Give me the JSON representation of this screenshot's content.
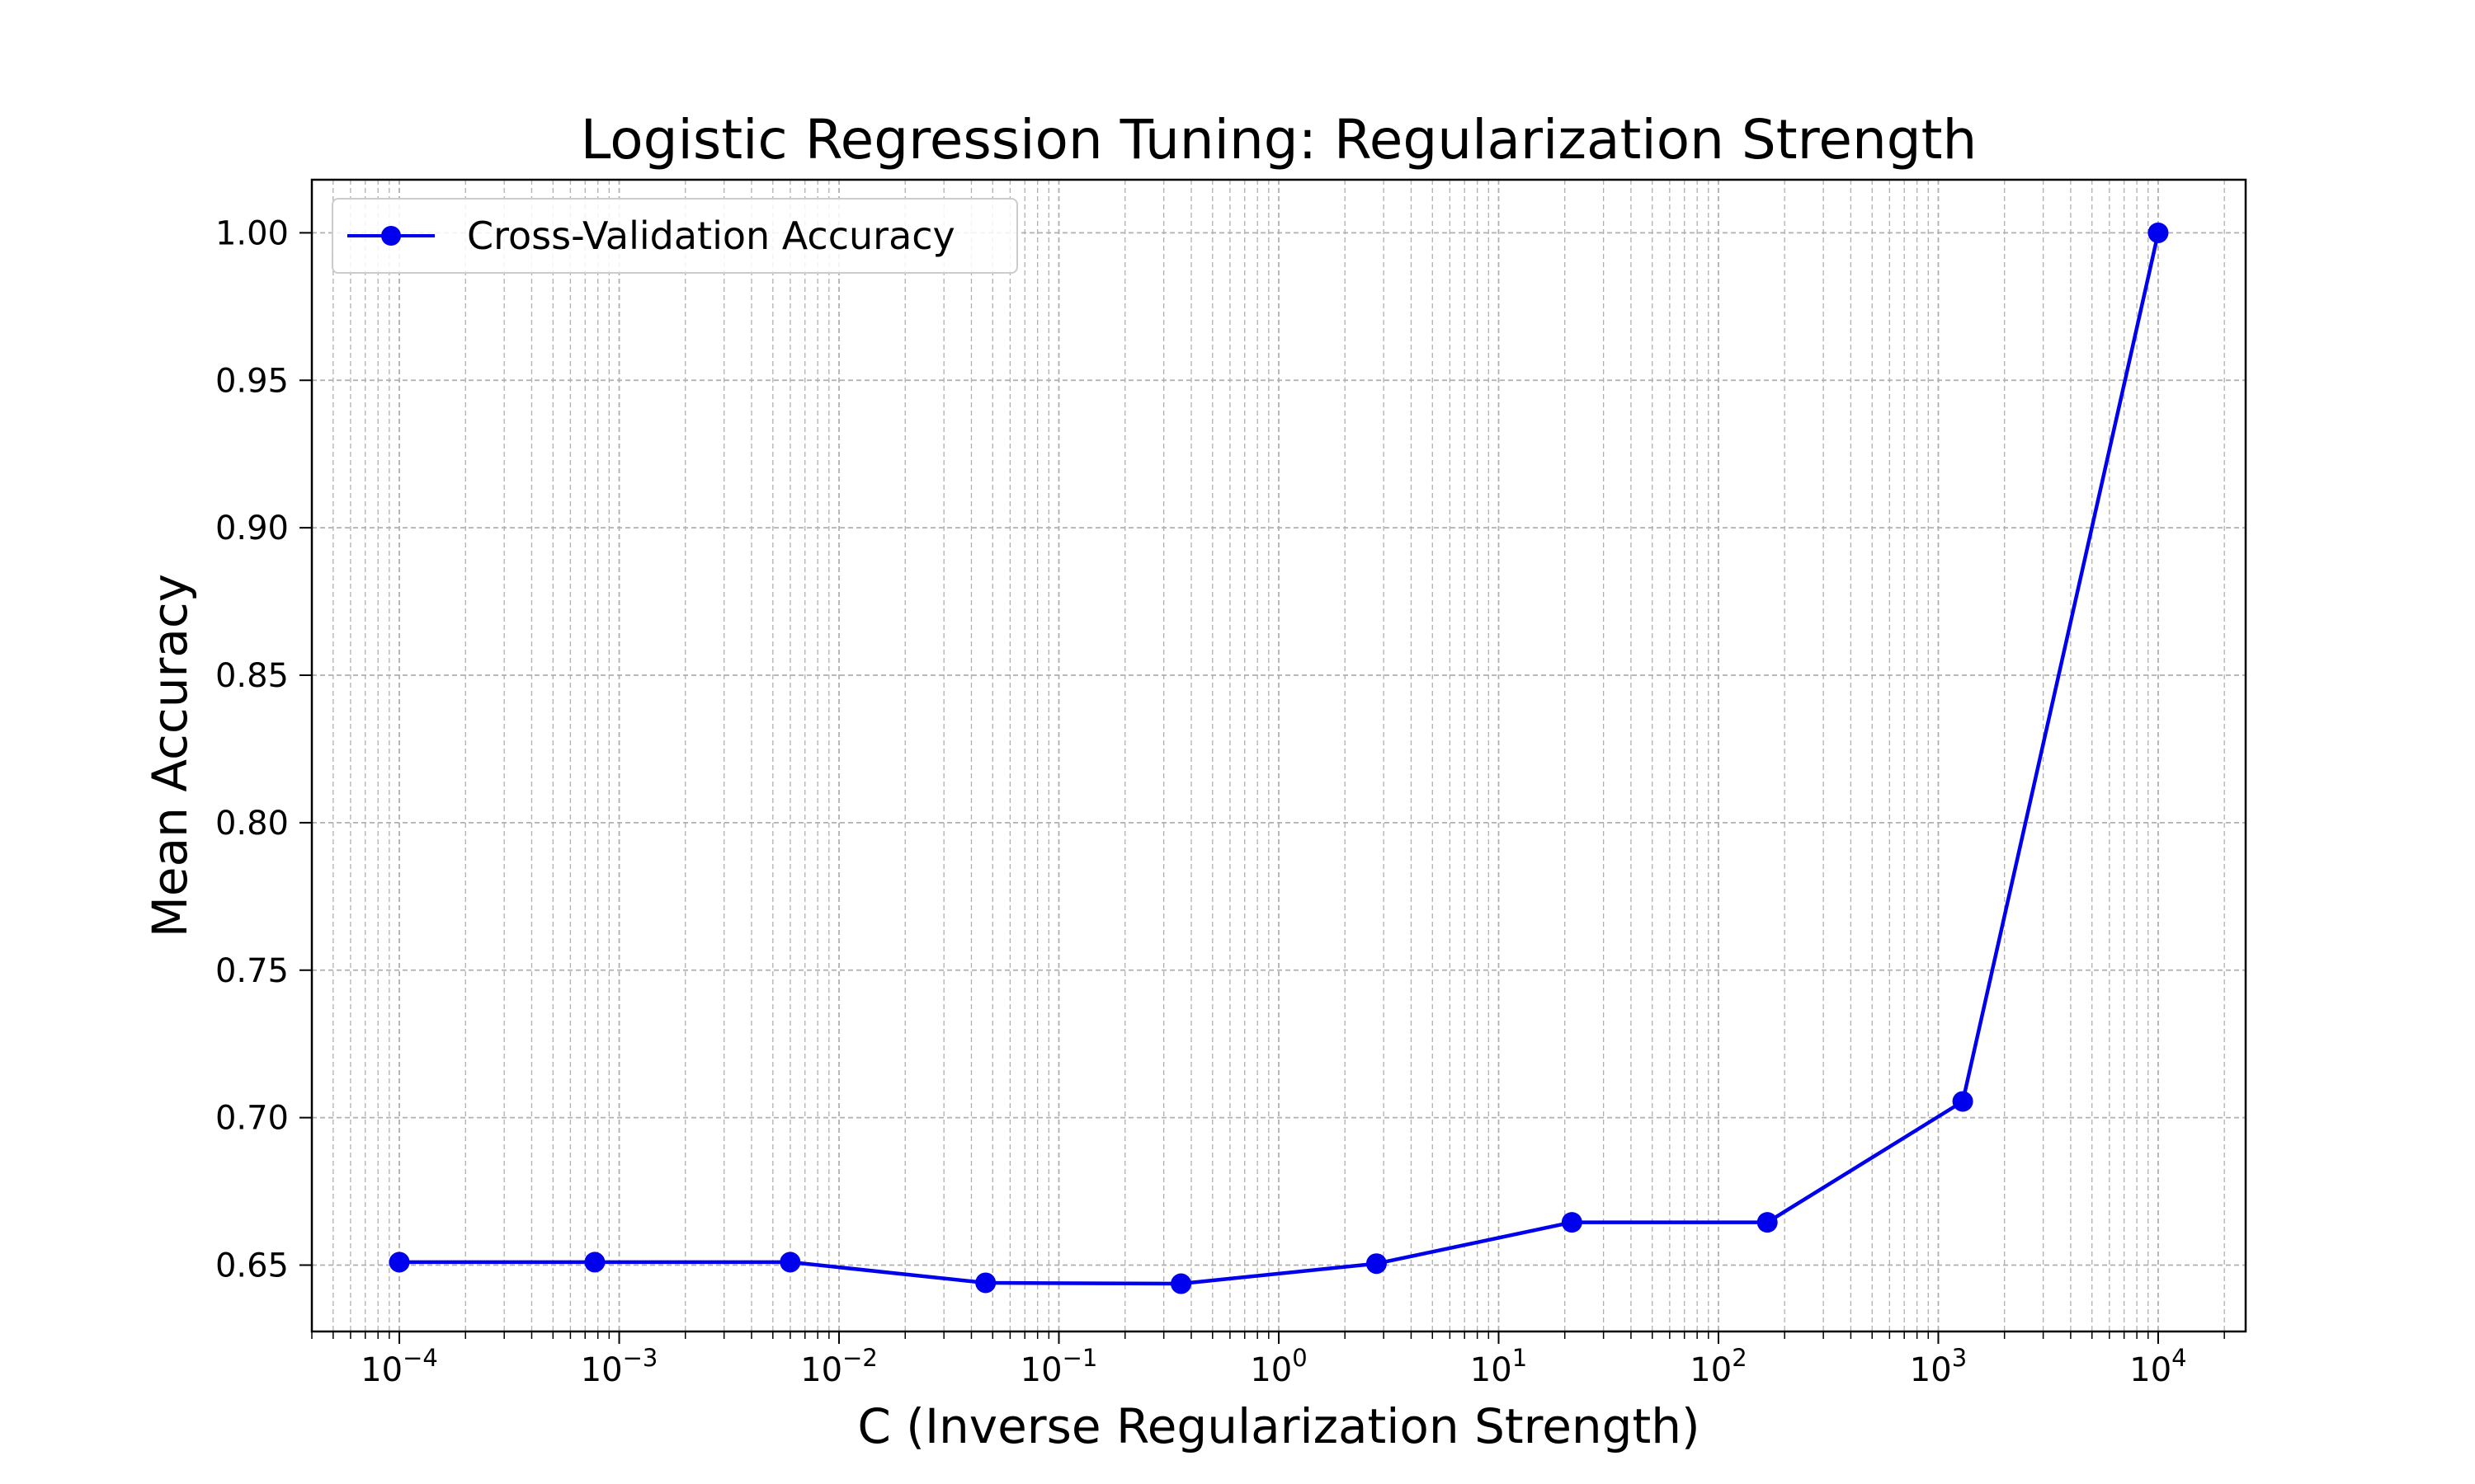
{
  "chart_data": {
    "type": "line",
    "title": "Logistic Regression Tuning: Regularization Strength",
    "xlabel": "C (Inverse Regularization Strength)",
    "ylabel": "Mean Accuracy",
    "x_scale": "log",
    "xlim": [
      4e-05,
      25000
    ],
    "ylim": [
      0.6275,
      1.018
    ],
    "grid": true,
    "grid_minor": true,
    "legend_position": "top-left",
    "x_ticks": [
      {
        "value": 0.0001,
        "base": "10",
        "exp": "−4"
      },
      {
        "value": 0.001,
        "base": "10",
        "exp": "−3"
      },
      {
        "value": 0.01,
        "base": "10",
        "exp": "−2"
      },
      {
        "value": 0.1,
        "base": "10",
        "exp": "−1"
      },
      {
        "value": 1,
        "base": "10",
        "exp": "0"
      },
      {
        "value": 10,
        "base": "10",
        "exp": "1"
      },
      {
        "value": 100,
        "base": "10",
        "exp": "2"
      },
      {
        "value": 1000,
        "base": "10",
        "exp": "3"
      },
      {
        "value": 10000,
        "base": "10",
        "exp": "4"
      }
    ],
    "y_ticks": [
      {
        "value": 0.65,
        "label": "0.65"
      },
      {
        "value": 0.7,
        "label": "0.70"
      },
      {
        "value": 0.75,
        "label": "0.75"
      },
      {
        "value": 0.8,
        "label": "0.80"
      },
      {
        "value": 0.85,
        "label": "0.85"
      },
      {
        "value": 0.9,
        "label": "0.90"
      },
      {
        "value": 0.95,
        "label": "0.95"
      },
      {
        "value": 1.0,
        "label": "1.00"
      }
    ],
    "series": [
      {
        "name": "Cross-Validation Accuracy",
        "color": "#0000ee",
        "marker": "circle",
        "x": [
          0.0001,
          0.000774,
          0.005995,
          0.046416,
          0.359381,
          2.782559,
          21.544347,
          166.810054,
          1291.549665,
          10000
        ],
        "y": [
          0.651,
          0.651,
          0.651,
          0.644,
          0.6437,
          0.6505,
          0.6645,
          0.6645,
          0.7055,
          1.0
        ]
      }
    ]
  }
}
